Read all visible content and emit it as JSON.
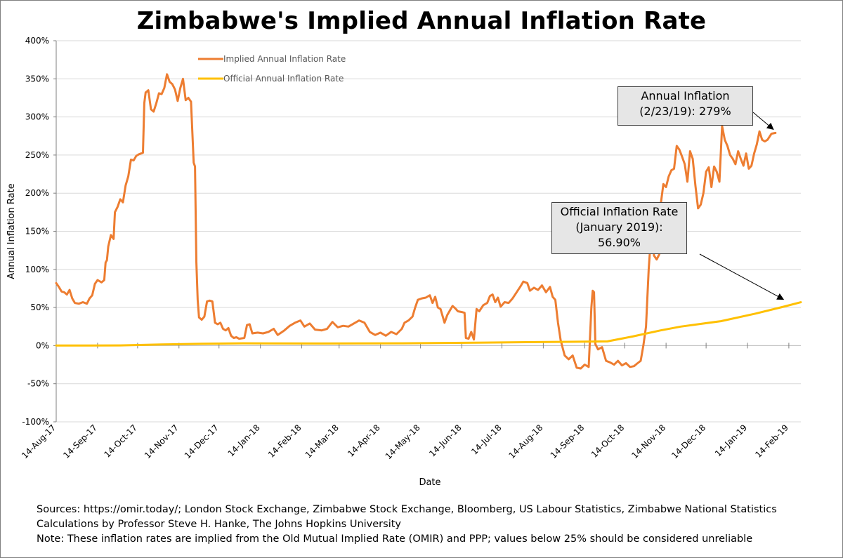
{
  "title": "Zimbabwe's Implied Annual Inflation Rate",
  "callouts": {
    "annual": {
      "line1": "Annual Inflation",
      "line2": "(2/23/19): 279%"
    },
    "official": {
      "line1": "Official Inflation Rate",
      "line2": "(January 2019):",
      "line3": "56.90%"
    }
  },
  "footer": {
    "line1": "Sources: https://omir.today/; London Stock Exchange, Zimbabwe Stock Exchange, Bloomberg, US Labour Statistics, Zimbabwe National Statistics",
    "line2": "Calculations by Professor Steve H. Hanke, The Johns Hopkins University",
    "line3": "Note: These inflation rates are implied from the Old Mutual Implied Rate (OMIR) and PPP; values below 25% should be considered unreliable"
  },
  "colors": {
    "implied": "#ed7d31",
    "official": "#ffc000",
    "grid": "#d9d9d9"
  },
  "chart_data": {
    "type": "line",
    "xlabel": "Date",
    "ylabel": "Annual Inflation Rate",
    "ylim": [
      -100,
      400
    ],
    "yticks": [
      -100,
      -50,
      0,
      50,
      100,
      150,
      200,
      250,
      300,
      350,
      400
    ],
    "ytick_labels": [
      "-100%",
      "-50%",
      "0%",
      "50%",
      "100%",
      "150%",
      "200%",
      "250%",
      "300%",
      "350%",
      "400%"
    ],
    "xlim": [
      "2017-08-14",
      "2019-02-23"
    ],
    "xtick_dates": [
      "2017-08-14",
      "2017-09-14",
      "2017-10-14",
      "2017-11-14",
      "2017-12-14",
      "2018-01-14",
      "2018-02-14",
      "2018-03-14",
      "2018-04-14",
      "2018-05-14",
      "2018-06-14",
      "2018-07-14",
      "2018-08-14",
      "2018-09-14",
      "2018-10-14",
      "2018-11-14",
      "2018-12-14",
      "2019-01-14",
      "2019-02-14"
    ],
    "xtick_labels": [
      "14-Aug-17",
      "14-Sep-17",
      "14-Oct-17",
      "14-Nov-17",
      "14-Dec-17",
      "14-Jan-18",
      "14-Feb-18",
      "14-Mar-18",
      "14-Apr-18",
      "14-May-18",
      "14-Jun-18",
      "14-Jul-18",
      "14-Aug-18",
      "14-Sep-18",
      "14-Oct-18",
      "14-Nov-18",
      "14-Dec-18",
      "14-Jan-19",
      "14-Feb-19"
    ],
    "grid": "horizontal",
    "legend": "top-left",
    "series": [
      {
        "name": "Implied Annual Inflation Rate",
        "color": "#ed7d31",
        "points": [
          [
            "2017-08-14",
            82
          ],
          [
            "2017-08-16",
            77
          ],
          [
            "2017-08-18",
            71
          ],
          [
            "2017-08-20",
            70
          ],
          [
            "2017-08-22",
            67
          ],
          [
            "2017-08-24",
            73
          ],
          [
            "2017-08-26",
            62
          ],
          [
            "2017-08-28",
            56
          ],
          [
            "2017-08-31",
            55
          ],
          [
            "2017-09-03",
            57
          ],
          [
            "2017-09-06",
            55
          ],
          [
            "2017-09-08",
            62
          ],
          [
            "2017-09-10",
            66
          ],
          [
            "2017-09-12",
            81
          ],
          [
            "2017-09-14",
            86
          ],
          [
            "2017-09-17",
            83
          ],
          [
            "2017-09-19",
            86
          ],
          [
            "2017-09-20",
            109
          ],
          [
            "2017-09-21",
            112
          ],
          [
            "2017-09-22",
            130
          ],
          [
            "2017-09-24",
            145
          ],
          [
            "2017-09-26",
            140
          ],
          [
            "2017-09-27",
            175
          ],
          [
            "2017-09-29",
            182
          ],
          [
            "2017-10-01",
            192
          ],
          [
            "2017-10-03",
            188
          ],
          [
            "2017-10-05",
            210
          ],
          [
            "2017-10-07",
            222
          ],
          [
            "2017-10-09",
            244
          ],
          [
            "2017-10-11",
            243
          ],
          [
            "2017-10-13",
            249
          ],
          [
            "2017-10-15",
            251
          ],
          [
            "2017-10-18",
            253
          ],
          [
            "2017-10-19",
            318
          ],
          [
            "2017-10-20",
            332
          ],
          [
            "2017-10-22",
            335
          ],
          [
            "2017-10-24",
            310
          ],
          [
            "2017-10-26",
            307
          ],
          [
            "2017-10-28",
            318
          ],
          [
            "2017-10-30",
            331
          ],
          [
            "2017-11-01",
            330
          ],
          [
            "2017-11-03",
            338
          ],
          [
            "2017-11-05",
            356
          ],
          [
            "2017-11-07",
            346
          ],
          [
            "2017-11-09",
            343
          ],
          [
            "2017-11-11",
            336
          ],
          [
            "2017-11-13",
            321
          ],
          [
            "2017-11-15",
            338
          ],
          [
            "2017-11-17",
            350
          ],
          [
            "2017-11-19",
            322
          ],
          [
            "2017-11-21",
            325
          ],
          [
            "2017-11-23",
            320
          ],
          [
            "2017-11-25",
            240
          ],
          [
            "2017-11-26",
            235
          ],
          [
            "2017-11-27",
            110
          ],
          [
            "2017-11-28",
            60
          ],
          [
            "2017-11-29",
            37
          ],
          [
            "2017-12-01",
            34
          ],
          [
            "2017-12-03",
            38
          ],
          [
            "2017-12-05",
            58
          ],
          [
            "2017-12-07",
            59
          ],
          [
            "2017-12-09",
            58
          ],
          [
            "2017-12-11",
            30
          ],
          [
            "2017-12-13",
            28
          ],
          [
            "2017-12-15",
            30
          ],
          [
            "2017-12-17",
            22
          ],
          [
            "2017-12-19",
            20
          ],
          [
            "2017-12-21",
            23
          ],
          [
            "2017-12-23",
            13
          ],
          [
            "2017-12-25",
            10
          ],
          [
            "2017-12-27",
            11
          ],
          [
            "2017-12-29",
            9
          ],
          [
            "2018-01-02",
            10
          ],
          [
            "2018-01-04",
            27
          ],
          [
            "2018-01-06",
            28
          ],
          [
            "2018-01-08",
            16
          ],
          [
            "2018-01-12",
            17
          ],
          [
            "2018-01-16",
            16
          ],
          [
            "2018-01-20",
            18
          ],
          [
            "2018-01-24",
            22
          ],
          [
            "2018-01-27",
            14
          ],
          [
            "2018-02-01",
            20
          ],
          [
            "2018-02-05",
            26
          ],
          [
            "2018-02-09",
            30
          ],
          [
            "2018-02-13",
            33
          ],
          [
            "2018-02-16",
            25
          ],
          [
            "2018-02-20",
            29
          ],
          [
            "2018-02-24",
            21
          ],
          [
            "2018-03-01",
            20
          ],
          [
            "2018-03-05",
            22
          ],
          [
            "2018-03-09",
            31
          ],
          [
            "2018-03-13",
            24
          ],
          [
            "2018-03-17",
            26
          ],
          [
            "2018-03-21",
            25
          ],
          [
            "2018-03-25",
            29
          ],
          [
            "2018-03-29",
            33
          ],
          [
            "2018-04-02",
            30
          ],
          [
            "2018-04-06",
            18
          ],
          [
            "2018-04-10",
            14
          ],
          [
            "2018-04-14",
            17
          ],
          [
            "2018-04-18",
            13
          ],
          [
            "2018-04-22",
            18
          ],
          [
            "2018-04-26",
            15
          ],
          [
            "2018-04-30",
            22
          ],
          [
            "2018-05-02",
            30
          ],
          [
            "2018-05-05",
            33
          ],
          [
            "2018-05-08",
            38
          ],
          [
            "2018-05-10",
            50
          ],
          [
            "2018-05-12",
            60
          ],
          [
            "2018-05-15",
            62
          ],
          [
            "2018-05-18",
            63
          ],
          [
            "2018-05-21",
            66
          ],
          [
            "2018-05-23",
            56
          ],
          [
            "2018-05-25",
            64
          ],
          [
            "2018-05-27",
            50
          ],
          [
            "2018-05-29",
            48
          ],
          [
            "2018-06-01",
            30
          ],
          [
            "2018-06-03",
            40
          ],
          [
            "2018-06-05",
            46
          ],
          [
            "2018-06-07",
            52
          ],
          [
            "2018-06-09",
            49
          ],
          [
            "2018-06-11",
            45
          ],
          [
            "2018-06-14",
            44
          ],
          [
            "2018-06-16",
            43
          ],
          [
            "2018-06-17",
            10
          ],
          [
            "2018-06-19",
            9
          ],
          [
            "2018-06-21",
            18
          ],
          [
            "2018-06-23",
            8
          ],
          [
            "2018-06-25",
            48
          ],
          [
            "2018-06-27",
            45
          ],
          [
            "2018-06-30",
            53
          ],
          [
            "2018-07-03",
            56
          ],
          [
            "2018-07-05",
            65
          ],
          [
            "2018-07-07",
            67
          ],
          [
            "2018-07-09",
            57
          ],
          [
            "2018-07-11",
            63
          ],
          [
            "2018-07-13",
            51
          ],
          [
            "2018-07-16",
            57
          ],
          [
            "2018-07-19",
            56
          ],
          [
            "2018-07-22",
            62
          ],
          [
            "2018-07-25",
            70
          ],
          [
            "2018-07-28",
            78
          ],
          [
            "2018-07-30",
            84
          ],
          [
            "2018-08-02",
            82
          ],
          [
            "2018-08-04",
            72
          ],
          [
            "2018-08-07",
            76
          ],
          [
            "2018-08-10",
            73
          ],
          [
            "2018-08-13",
            79
          ],
          [
            "2018-08-16",
            70
          ],
          [
            "2018-08-19",
            77
          ],
          [
            "2018-08-21",
            64
          ],
          [
            "2018-08-23",
            60
          ],
          [
            "2018-08-25",
            30
          ],
          [
            "2018-08-27",
            7
          ],
          [
            "2018-08-30",
            -13
          ],
          [
            "2018-09-02",
            -18
          ],
          [
            "2018-09-05",
            -13
          ],
          [
            "2018-09-08",
            -29
          ],
          [
            "2018-09-11",
            -30
          ],
          [
            "2018-09-14",
            -25
          ],
          [
            "2018-09-17",
            -28
          ],
          [
            "2018-09-19",
            50
          ],
          [
            "2018-09-20",
            72
          ],
          [
            "2018-09-21",
            70
          ],
          [
            "2018-09-22",
            2
          ],
          [
            "2018-09-24",
            -5
          ],
          [
            "2018-09-27",
            -2
          ],
          [
            "2018-09-30",
            -20
          ],
          [
            "2018-10-03",
            -22
          ],
          [
            "2018-10-06",
            -25
          ],
          [
            "2018-10-09",
            -20
          ],
          [
            "2018-10-12",
            -26
          ],
          [
            "2018-10-15",
            -23
          ],
          [
            "2018-10-18",
            -28
          ],
          [
            "2018-10-21",
            -27
          ],
          [
            "2018-10-23",
            -24
          ],
          [
            "2018-10-26",
            -20
          ],
          [
            "2018-10-28",
            0
          ],
          [
            "2018-10-30",
            25
          ],
          [
            "2018-11-01",
            100
          ],
          [
            "2018-11-03",
            150
          ],
          [
            "2018-11-05",
            118
          ],
          [
            "2018-11-07",
            113
          ],
          [
            "2018-11-09",
            120
          ],
          [
            "2018-11-10",
            185
          ],
          [
            "2018-11-12",
            212
          ],
          [
            "2018-11-14",
            208
          ],
          [
            "2018-11-16",
            222
          ],
          [
            "2018-11-18",
            230
          ],
          [
            "2018-11-20",
            232
          ],
          [
            "2018-11-22",
            262
          ],
          [
            "2018-11-24",
            257
          ],
          [
            "2018-11-26",
            248
          ],
          [
            "2018-11-28",
            238
          ],
          [
            "2018-11-30",
            215
          ],
          [
            "2018-12-02",
            255
          ],
          [
            "2018-12-04",
            245
          ],
          [
            "2018-12-06",
            210
          ],
          [
            "2018-12-08",
            180
          ],
          [
            "2018-12-10",
            185
          ],
          [
            "2018-12-12",
            200
          ],
          [
            "2018-12-14",
            228
          ],
          [
            "2018-12-16",
            234
          ],
          [
            "2018-12-18",
            208
          ],
          [
            "2018-12-20",
            235
          ],
          [
            "2018-12-22",
            228
          ],
          [
            "2018-12-24",
            215
          ],
          [
            "2018-12-26",
            288
          ],
          [
            "2018-12-28",
            270
          ],
          [
            "2018-12-30",
            262
          ],
          [
            "2019-01-01",
            250
          ],
          [
            "2019-01-03",
            245
          ],
          [
            "2019-01-05",
            238
          ],
          [
            "2019-01-07",
            255
          ],
          [
            "2019-01-09",
            245
          ],
          [
            "2019-01-11",
            236
          ],
          [
            "2019-01-13",
            252
          ],
          [
            "2019-01-15",
            232
          ],
          [
            "2019-01-17",
            236
          ],
          [
            "2019-01-19",
            252
          ],
          [
            "2019-01-21",
            264
          ],
          [
            "2019-01-23",
            281
          ],
          [
            "2019-01-25",
            270
          ],
          [
            "2019-01-27",
            268
          ],
          [
            "2019-01-29",
            270
          ],
          [
            "2019-02-01",
            278
          ],
          [
            "2019-02-04",
            279
          ]
        ]
      },
      {
        "name": "Official Annual Inflation Rate",
        "color": "#ffc000",
        "points": [
          [
            "2017-08-14",
            0.1
          ],
          [
            "2017-10-01",
            0.3
          ],
          [
            "2017-11-01",
            1.5
          ],
          [
            "2017-12-01",
            2.5
          ],
          [
            "2018-01-01",
            3
          ],
          [
            "2018-03-01",
            2.8
          ],
          [
            "2018-05-01",
            3
          ],
          [
            "2018-06-01",
            3.5
          ],
          [
            "2018-07-01",
            4
          ],
          [
            "2018-08-01",
            4.5
          ],
          [
            "2018-09-01",
            5
          ],
          [
            "2018-10-01",
            5.5
          ],
          [
            "2018-10-20",
            12
          ],
          [
            "2018-11-10",
            20
          ],
          [
            "2018-11-25",
            25
          ],
          [
            "2018-12-25",
            32
          ],
          [
            "2019-01-20",
            42
          ],
          [
            "2019-02-10",
            51
          ],
          [
            "2019-02-23",
            56.9
          ]
        ]
      }
    ]
  }
}
